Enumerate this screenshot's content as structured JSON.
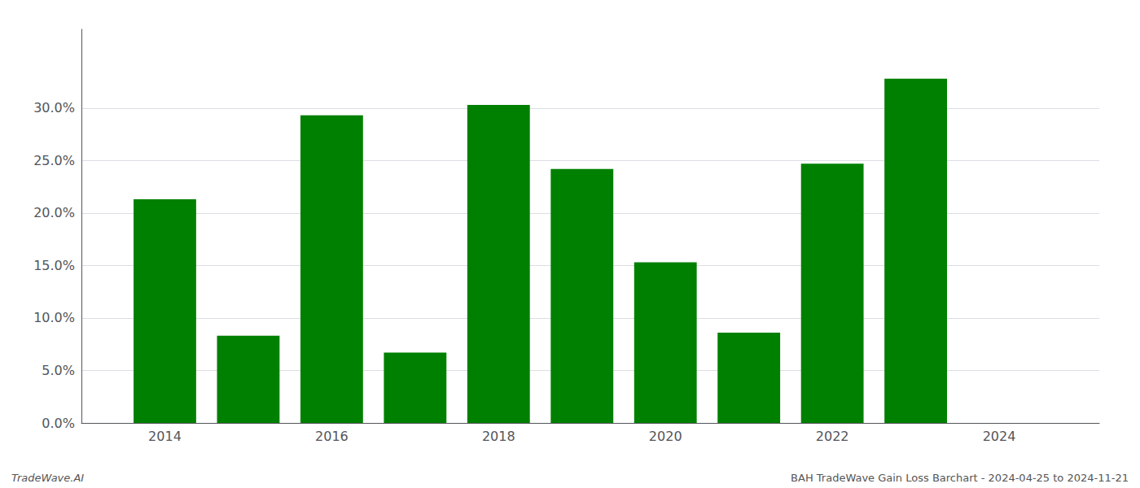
{
  "chart_data": {
    "type": "bar",
    "x": [
      2014,
      2015,
      2016,
      2017,
      2018,
      2019,
      2020,
      2021,
      2022,
      2023
    ],
    "values": [
      0.213,
      0.083,
      0.293,
      0.067,
      0.303,
      0.242,
      0.153,
      0.086,
      0.247,
      0.328
    ],
    "color": "#008000",
    "xlim": [
      2013.0,
      2025.2
    ],
    "xticks": [
      2014,
      2016,
      2018,
      2020,
      2022,
      2024
    ],
    "ylim": [
      0,
      0.375
    ],
    "yticks": [
      {
        "value": 0.0,
        "label": "0.0%"
      },
      {
        "value": 0.05,
        "label": "5.0%"
      },
      {
        "value": 0.1,
        "label": "10.0%"
      },
      {
        "value": 0.15,
        "label": "15.0%"
      },
      {
        "value": 0.2,
        "label": "20.0%"
      },
      {
        "value": 0.25,
        "label": "25.0%"
      },
      {
        "value": 0.3,
        "label": "30.0%"
      }
    ],
    "grid": true,
    "annotations": [
      "TradeWave.AI",
      "BAH TradeWave Gain Loss Barchart - 2024-04-25 to 2024-11-21"
    ]
  }
}
